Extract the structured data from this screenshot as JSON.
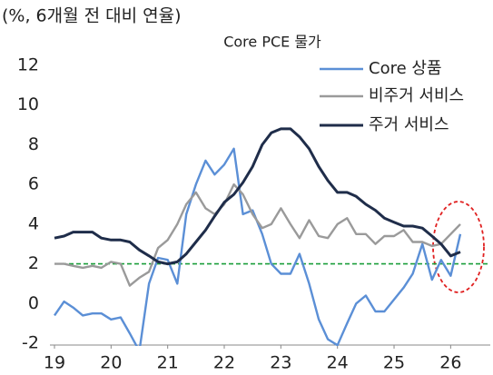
{
  "chart_data": {
    "type": "line",
    "subtitle": "(%, 6개월 전 대비 연율)",
    "title": "Core PCE 물가",
    "x": [
      19,
      19.17,
      19.33,
      19.5,
      19.67,
      19.83,
      20,
      20.17,
      20.33,
      20.5,
      20.67,
      20.83,
      21,
      21.17,
      21.33,
      21.5,
      21.67,
      21.83,
      22,
      22.17,
      22.33,
      22.5,
      22.67,
      22.83,
      23,
      23.17,
      23.33,
      23.5,
      23.67,
      23.83,
      24,
      24.17,
      24.33,
      24.5,
      24.67,
      24.83,
      25,
      25.17,
      25.33,
      25.5,
      25.67,
      25.83,
      26,
      26.17
    ],
    "series": [
      {
        "name": "Core 상품",
        "color": "#5b8fd6",
        "values": [
          -0.6,
          0.1,
          -0.2,
          -0.6,
          -0.5,
          -0.5,
          -0.8,
          -0.7,
          -1.5,
          -2.4,
          1.0,
          2.3,
          2.2,
          1.0,
          4.5,
          6.0,
          7.2,
          6.5,
          7.0,
          7.8,
          4.5,
          4.7,
          3.5,
          2.0,
          1.5,
          1.5,
          2.5,
          1.0,
          -0.8,
          -1.8,
          -2.1,
          -1.0,
          0.0,
          0.4,
          -0.4,
          -0.4,
          0.2,
          0.8,
          1.5,
          3.0,
          1.2,
          2.2,
          1.4,
          3.5
        ]
      },
      {
        "name": "비주거 서비스",
        "color": "#9a9a9a",
        "values": [
          2.0,
          2.0,
          1.9,
          1.8,
          1.9,
          1.8,
          2.1,
          2.0,
          0.9,
          1.3,
          1.6,
          2.8,
          3.2,
          4.0,
          5.0,
          5.6,
          4.8,
          4.5,
          5.0,
          6.0,
          5.5,
          4.5,
          3.8,
          4.0,
          4.8,
          4.0,
          3.3,
          4.2,
          3.4,
          3.3,
          4.0,
          4.3,
          3.5,
          3.5,
          3.0,
          3.4,
          3.4,
          3.7,
          3.1,
          3.1,
          2.9,
          3.0,
          3.5,
          4.0
        ]
      },
      {
        "name": "주거 서비스",
        "color": "#1f2d4a",
        "values": [
          3.3,
          3.4,
          3.6,
          3.6,
          3.6,
          3.3,
          3.2,
          3.2,
          3.1,
          2.7,
          2.4,
          2.1,
          2.0,
          2.1,
          2.5,
          3.1,
          3.7,
          4.4,
          5.1,
          5.5,
          6.1,
          6.9,
          8.0,
          8.6,
          8.8,
          8.8,
          8.4,
          7.8,
          6.9,
          6.2,
          5.6,
          5.6,
          5.4,
          5.0,
          4.7,
          4.3,
          4.1,
          3.9,
          3.9,
          3.8,
          3.4,
          3.0,
          2.4,
          2.6
        ]
      }
    ],
    "hline": 2,
    "hline_color": "#1a9e3a",
    "xlim": [
      19,
      26.7
    ],
    "xticks": [
      19,
      20,
      21,
      22,
      23,
      24,
      25,
      26
    ],
    "ylim": [
      -2,
      12
    ],
    "yticks": [
      -2,
      0,
      2,
      4,
      6,
      8,
      10,
      12
    ],
    "grid": false
  }
}
